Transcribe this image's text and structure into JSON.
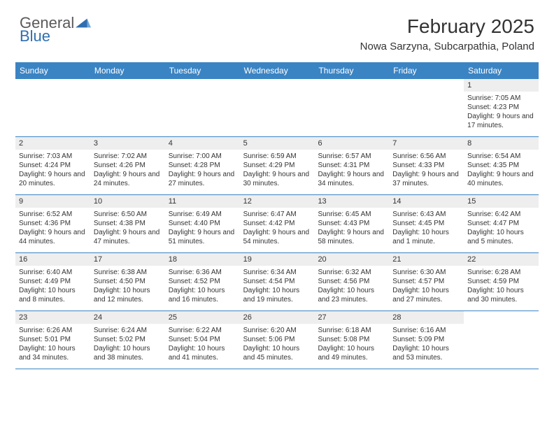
{
  "brand": {
    "word1": "General",
    "word2": "Blue",
    "word1_color": "#5a5a5a",
    "word2_color": "#2f6fb0",
    "triangle_fill": "#2f6fb0"
  },
  "title": "February 2025",
  "location": "Nowa Sarzyna, Subcarpathia, Poland",
  "colors": {
    "header_bg": "#3b84c4",
    "header_text": "#ffffff",
    "daynum_bg": "#eeeeee",
    "text": "#333333",
    "border": "#3b84c4",
    "page_bg": "#ffffff"
  },
  "typography": {
    "title_fontsize": 28,
    "location_fontsize": 15,
    "dayheader_fontsize": 12,
    "daynum_fontsize": 11,
    "body_fontsize": 10
  },
  "day_names": [
    "Sunday",
    "Monday",
    "Tuesday",
    "Wednesday",
    "Thursday",
    "Friday",
    "Saturday"
  ],
  "weeks": [
    [
      {
        "empty": true
      },
      {
        "empty": true
      },
      {
        "empty": true
      },
      {
        "empty": true
      },
      {
        "empty": true
      },
      {
        "empty": true
      },
      {
        "n": "1",
        "sunrise": "7:05 AM",
        "sunset": "4:23 PM",
        "daylight": "9 hours and 17 minutes."
      }
    ],
    [
      {
        "n": "2",
        "sunrise": "7:03 AM",
        "sunset": "4:24 PM",
        "daylight": "9 hours and 20 minutes."
      },
      {
        "n": "3",
        "sunrise": "7:02 AM",
        "sunset": "4:26 PM",
        "daylight": "9 hours and 24 minutes."
      },
      {
        "n": "4",
        "sunrise": "7:00 AM",
        "sunset": "4:28 PM",
        "daylight": "9 hours and 27 minutes."
      },
      {
        "n": "5",
        "sunrise": "6:59 AM",
        "sunset": "4:29 PM",
        "daylight": "9 hours and 30 minutes."
      },
      {
        "n": "6",
        "sunrise": "6:57 AM",
        "sunset": "4:31 PM",
        "daylight": "9 hours and 34 minutes."
      },
      {
        "n": "7",
        "sunrise": "6:56 AM",
        "sunset": "4:33 PM",
        "daylight": "9 hours and 37 minutes."
      },
      {
        "n": "8",
        "sunrise": "6:54 AM",
        "sunset": "4:35 PM",
        "daylight": "9 hours and 40 minutes."
      }
    ],
    [
      {
        "n": "9",
        "sunrise": "6:52 AM",
        "sunset": "4:36 PM",
        "daylight": "9 hours and 44 minutes."
      },
      {
        "n": "10",
        "sunrise": "6:50 AM",
        "sunset": "4:38 PM",
        "daylight": "9 hours and 47 minutes."
      },
      {
        "n": "11",
        "sunrise": "6:49 AM",
        "sunset": "4:40 PM",
        "daylight": "9 hours and 51 minutes."
      },
      {
        "n": "12",
        "sunrise": "6:47 AM",
        "sunset": "4:42 PM",
        "daylight": "9 hours and 54 minutes."
      },
      {
        "n": "13",
        "sunrise": "6:45 AM",
        "sunset": "4:43 PM",
        "daylight": "9 hours and 58 minutes."
      },
      {
        "n": "14",
        "sunrise": "6:43 AM",
        "sunset": "4:45 PM",
        "daylight": "10 hours and 1 minute."
      },
      {
        "n": "15",
        "sunrise": "6:42 AM",
        "sunset": "4:47 PM",
        "daylight": "10 hours and 5 minutes."
      }
    ],
    [
      {
        "n": "16",
        "sunrise": "6:40 AM",
        "sunset": "4:49 PM",
        "daylight": "10 hours and 8 minutes."
      },
      {
        "n": "17",
        "sunrise": "6:38 AM",
        "sunset": "4:50 PM",
        "daylight": "10 hours and 12 minutes."
      },
      {
        "n": "18",
        "sunrise": "6:36 AM",
        "sunset": "4:52 PM",
        "daylight": "10 hours and 16 minutes."
      },
      {
        "n": "19",
        "sunrise": "6:34 AM",
        "sunset": "4:54 PM",
        "daylight": "10 hours and 19 minutes."
      },
      {
        "n": "20",
        "sunrise": "6:32 AM",
        "sunset": "4:56 PM",
        "daylight": "10 hours and 23 minutes."
      },
      {
        "n": "21",
        "sunrise": "6:30 AM",
        "sunset": "4:57 PM",
        "daylight": "10 hours and 27 minutes."
      },
      {
        "n": "22",
        "sunrise": "6:28 AM",
        "sunset": "4:59 PM",
        "daylight": "10 hours and 30 minutes."
      }
    ],
    [
      {
        "n": "23",
        "sunrise": "6:26 AM",
        "sunset": "5:01 PM",
        "daylight": "10 hours and 34 minutes."
      },
      {
        "n": "24",
        "sunrise": "6:24 AM",
        "sunset": "5:02 PM",
        "daylight": "10 hours and 38 minutes."
      },
      {
        "n": "25",
        "sunrise": "6:22 AM",
        "sunset": "5:04 PM",
        "daylight": "10 hours and 41 minutes."
      },
      {
        "n": "26",
        "sunrise": "6:20 AM",
        "sunset": "5:06 PM",
        "daylight": "10 hours and 45 minutes."
      },
      {
        "n": "27",
        "sunrise": "6:18 AM",
        "sunset": "5:08 PM",
        "daylight": "10 hours and 49 minutes."
      },
      {
        "n": "28",
        "sunrise": "6:16 AM",
        "sunset": "5:09 PM",
        "daylight": "10 hours and 53 minutes."
      },
      {
        "empty": true
      }
    ]
  ],
  "labels": {
    "sunrise": "Sunrise:",
    "sunset": "Sunset:",
    "daylight": "Daylight:"
  }
}
